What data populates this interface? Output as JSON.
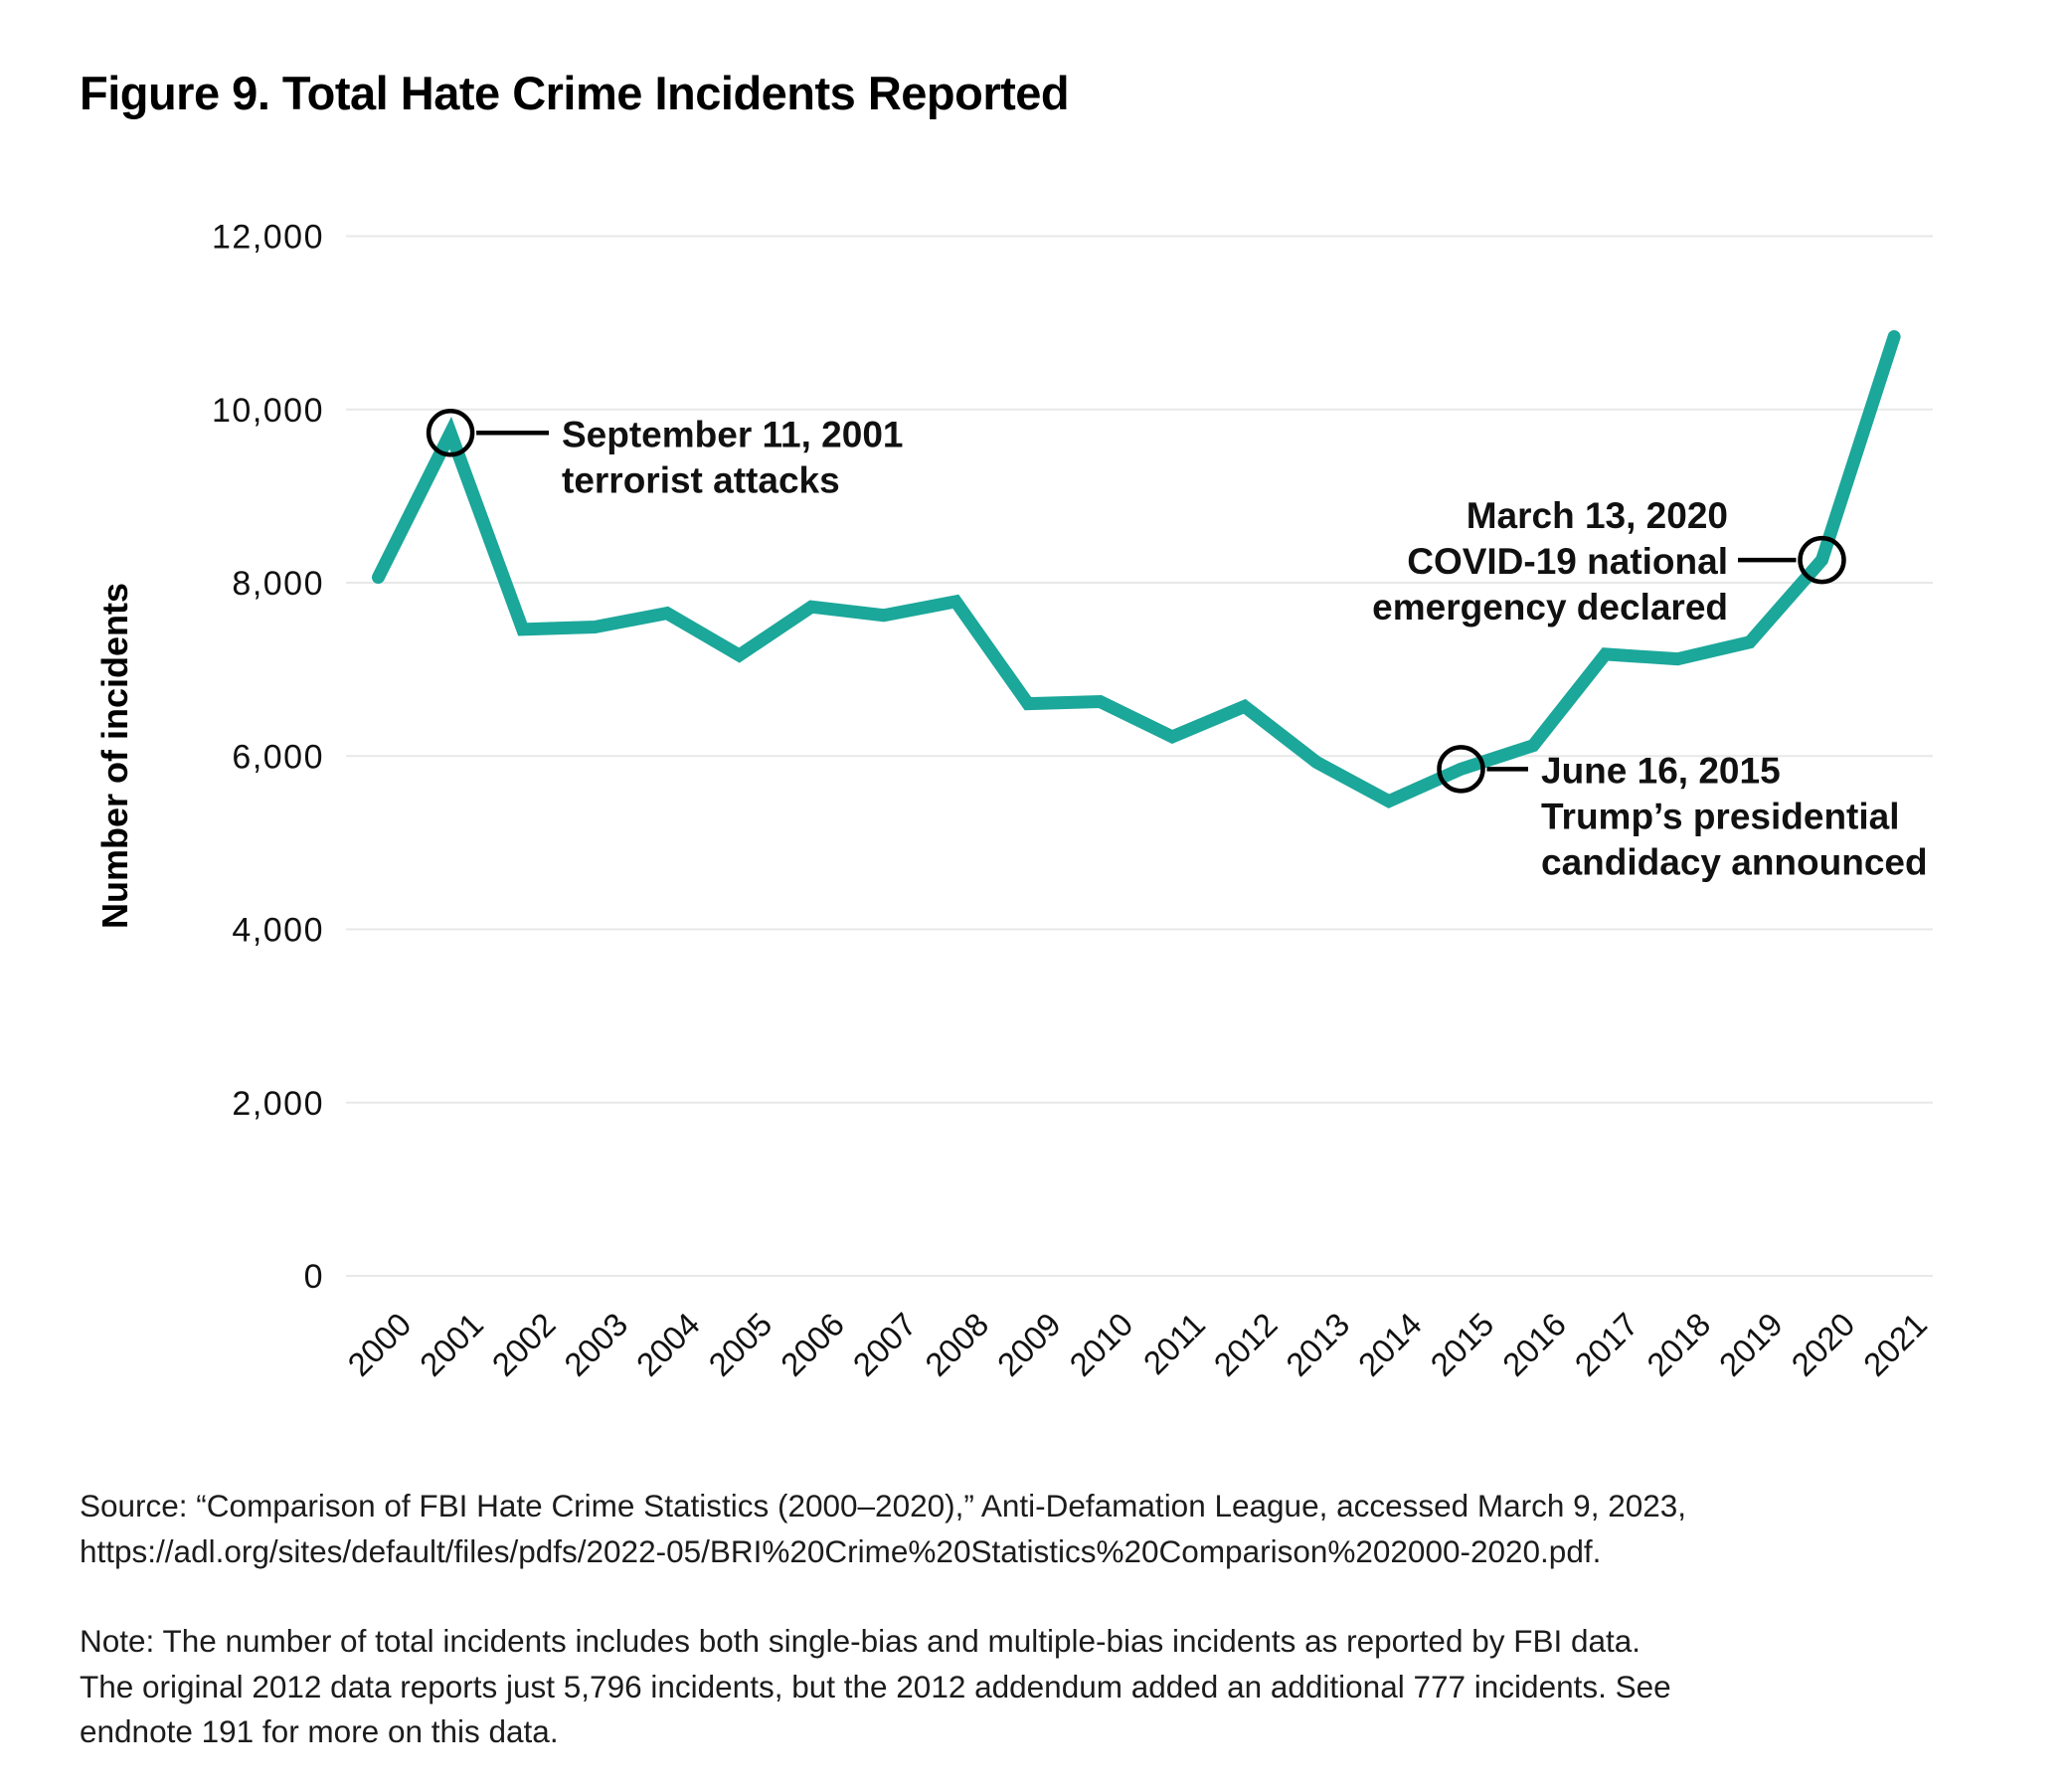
{
  "figure": {
    "title": "Figure 9. Total Hate Crime Incidents Reported",
    "source_lines": [
      "Source: “Comparison of FBI Hate Crime Statistics (2000–2020),” Anti-Defamation League, accessed March 9, 2023,",
      "https://adl.org/sites/default/files/pdfs/2022-05/BRI%20Crime%20Statistics%20Comparison%202000-2020.pdf."
    ],
    "note_lines": [
      "Note: The number of total incidents includes both single-bias and multiple-bias incidents as reported by FBI data.",
      "The original 2012 data reports just 5,796 incidents, but the 2012 addendum added an additional 777 incidents. See",
      "endnote 191 for more on this data."
    ]
  },
  "chart_data": {
    "type": "line",
    "title": "Figure 9. Total Hate Crime Incidents Reported",
    "xlabel": "",
    "ylabel": "Number of incidents",
    "x": [
      "2000",
      "2001",
      "2002",
      "2003",
      "2004",
      "2005",
      "2006",
      "2007",
      "2008",
      "2009",
      "2010",
      "2011",
      "2012",
      "2013",
      "2014",
      "2015",
      "2016",
      "2017",
      "2018",
      "2019",
      "2020",
      "2021"
    ],
    "values": [
      8063,
      9730,
      7462,
      7489,
      7649,
      7163,
      7722,
      7624,
      7783,
      6604,
      6628,
      6222,
      6573,
      5928,
      5479,
      5850,
      6121,
      7175,
      7120,
      7314,
      8263,
      10840
    ],
    "ylim": [
      0,
      12000
    ],
    "yticks": [
      0,
      2000,
      4000,
      6000,
      8000,
      10000,
      12000
    ],
    "ytick_labels": [
      "0",
      "2,000",
      "4,000",
      "6,000",
      "8,000",
      "10,000",
      "12,000"
    ],
    "grid": "horizontal",
    "legend": "none",
    "line_color": "#1BA79A",
    "grid_color": "#e8e8e8",
    "annotation_color": "#000000",
    "annotations": [
      {
        "year": "2001",
        "value": 9730,
        "lines": [
          "September 11, 2001",
          "terrorist attacks"
        ]
      },
      {
        "year": "2020",
        "value": 8263,
        "lines": [
          "March 13, 2020",
          "COVID-19 national",
          "emergency declared"
        ]
      },
      {
        "year": "2015",
        "value": 5850,
        "lines": [
          "June 16, 2015",
          "Trump’s presidential",
          "candidacy announced"
        ]
      }
    ]
  }
}
